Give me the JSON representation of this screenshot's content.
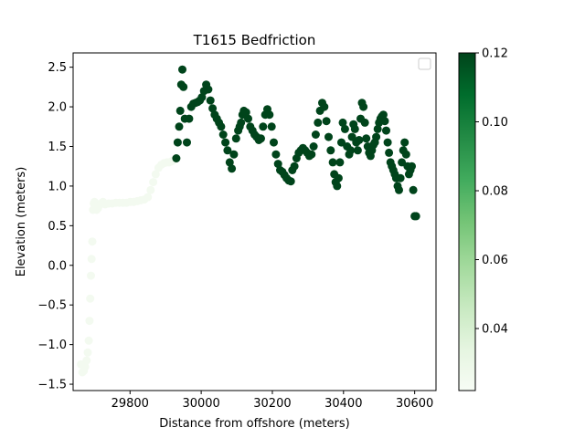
{
  "chart_data": {
    "type": "scatter",
    "title": "T1615 Bedfriction",
    "xlabel": "Distance from offshore (meters)",
    "ylabel": "Elevation (meters)",
    "xlim": [
      29640,
      30660
    ],
    "ylim": [
      -1.58,
      2.68
    ],
    "xticks": [
      "29800",
      "30000",
      "30200",
      "30400",
      "30600"
    ],
    "yticks": [
      "-1.5",
      "-1.0",
      "-0.5",
      "0.0",
      "0.5",
      "1.0",
      "1.5",
      "2.0",
      "2.5"
    ],
    "colorbar": {
      "cmap": "Greens",
      "range": [
        0.022,
        0.12
      ],
      "ticks": [
        "0.04",
        "0.06",
        "0.08",
        "0.10",
        "0.12"
      ]
    },
    "legend": {
      "placement": "upper right",
      "entries": []
    },
    "grid": false,
    "series": [
      {
        "x": [
          29662,
          29666,
          29670,
          29674,
          29678,
          29681,
          29684,
          29686,
          29688,
          29690,
          29692,
          29694,
          29696,
          29698,
          29700,
          29703,
          29706,
          29710,
          29714,
          29718,
          29724,
          29730,
          29740,
          29750,
          29760,
          29770,
          29780,
          29790,
          29800,
          29810,
          29820,
          29830,
          29840,
          29850,
          29858,
          29865,
          29872,
          29880,
          29888,
          29896,
          29904,
          29910,
          29916,
          29920,
          29924
        ],
        "y": [
          -1.25,
          -1.35,
          -1.33,
          -1.28,
          -1.2,
          -1.1,
          -0.95,
          -0.7,
          -0.42,
          -0.13,
          0.08,
          0.3,
          0.7,
          0.78,
          0.8,
          0.75,
          0.7,
          0.72,
          0.76,
          0.78,
          0.8,
          0.77,
          0.78,
          0.78,
          0.79,
          0.79,
          0.79,
          0.79,
          0.8,
          0.8,
          0.81,
          0.82,
          0.83,
          0.86,
          0.95,
          1.05,
          1.15,
          1.23,
          1.27,
          1.29,
          1.3,
          1.3,
          1.31,
          1.32,
          1.33
        ],
        "c": 0.025
      },
      {
        "x": [
          29930,
          29934,
          29938,
          29941,
          29944,
          29947,
          29950,
          29954,
          29960,
          29966,
          29972,
          29978,
          29984,
          29990,
          29996,
          30002,
          30008,
          30014,
          30020,
          30026,
          30032,
          30038,
          30044,
          30050,
          30056,
          30062,
          30068,
          30074,
          30080,
          30086,
          30092,
          30098,
          30104,
          30108,
          30112,
          30116,
          30120,
          30126,
          30132,
          30138,
          30144,
          30150,
          30156,
          30162,
          30168,
          30174,
          30180,
          30186,
          30192,
          30198,
          30204,
          30210,
          30216,
          30222,
          30228,
          30234,
          30240,
          30246,
          30252,
          30256,
          30262,
          30268,
          30274,
          30280,
          30286,
          30292,
          30298,
          30304,
          30310,
          30316,
          30322,
          30328,
          30334,
          30340,
          30346,
          30352,
          30358,
          30364,
          30370,
          30374,
          30378,
          30382,
          30386,
          30390,
          30394,
          30398,
          30404,
          30410,
          30416,
          30420,
          30424,
          30428,
          30432,
          30436,
          30440,
          30444,
          30448,
          30452,
          30456,
          30460,
          30464,
          30468,
          30472,
          30476,
          30480,
          30484,
          30488,
          30492,
          30496,
          30500,
          30504,
          30508,
          30512,
          30516,
          30520,
          30524,
          30528,
          30532,
          30536,
          30540,
          30544,
          30548,
          30552,
          30556,
          30560,
          30564,
          30568,
          30572,
          30576,
          30580,
          30584,
          30588,
          30592,
          30596,
          30600,
          30604
        ],
        "y": [
          1.35,
          1.55,
          1.75,
          1.95,
          2.28,
          2.47,
          2.25,
          1.85,
          1.55,
          1.85,
          2.0,
          2.04,
          2.05,
          2.06,
          2.08,
          2.12,
          2.2,
          2.28,
          2.22,
          2.08,
          1.98,
          1.9,
          1.85,
          1.8,
          1.75,
          1.65,
          1.55,
          1.45,
          1.3,
          1.22,
          1.4,
          1.6,
          1.7,
          1.75,
          1.8,
          1.9,
          1.95,
          1.93,
          1.85,
          1.75,
          1.7,
          1.65,
          1.62,
          1.58,
          1.6,
          1.75,
          1.9,
          1.97,
          1.9,
          1.75,
          1.55,
          1.4,
          1.28,
          1.2,
          1.18,
          1.14,
          1.1,
          1.07,
          1.06,
          1.2,
          1.25,
          1.35,
          1.42,
          1.45,
          1.48,
          1.45,
          1.42,
          1.38,
          1.4,
          1.5,
          1.65,
          1.8,
          1.95,
          2.05,
          2.0,
          1.82,
          1.62,
          1.45,
          1.3,
          1.15,
          1.05,
          1.0,
          1.1,
          1.3,
          1.55,
          1.8,
          1.72,
          1.5,
          1.4,
          1.45,
          1.62,
          1.78,
          1.72,
          1.55,
          1.45,
          1.58,
          1.85,
          2.05,
          2.0,
          1.8,
          1.6,
          1.5,
          1.42,
          1.38,
          1.45,
          1.52,
          1.55,
          1.62,
          1.72,
          1.8,
          1.85,
          1.88,
          1.9,
          1.82,
          1.7,
          1.55,
          1.42,
          1.3,
          1.25,
          1.2,
          1.15,
          1.1,
          1.0,
          0.95,
          1.1,
          1.3,
          1.45,
          1.55,
          1.4,
          1.25,
          1.15,
          1.2,
          1.25,
          0.95,
          0.62,
          0.62
        ],
        "c": 0.12
      }
    ]
  }
}
